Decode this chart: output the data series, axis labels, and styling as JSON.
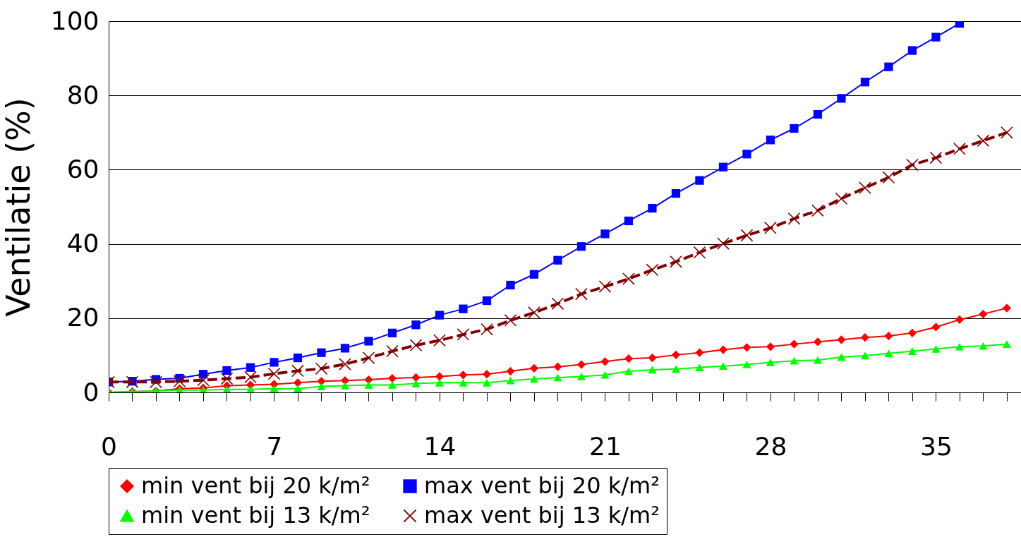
{
  "chart_data": {
    "type": "line",
    "ylabel": "Ventilatie (%)",
    "x": [
      0,
      1,
      2,
      3,
      4,
      5,
      6,
      7,
      8,
      9,
      10,
      11,
      12,
      13,
      14,
      15,
      16,
      17,
      18,
      19,
      20,
      21,
      22,
      23,
      24,
      25,
      26,
      27,
      28,
      29,
      30,
      31,
      32,
      33,
      34,
      35,
      36,
      37,
      38
    ],
    "xlim": [
      0,
      38.6
    ],
    "xticks": [
      0,
      {
        "value": 1,
        "label": null
      },
      {
        "value": 2,
        "label": null
      },
      {
        "value": 3,
        "label": null
      },
      {
        "value": 4,
        "label": null
      },
      {
        "value": 5,
        "label": null
      },
      {
        "value": 6,
        "label": null
      },
      7,
      {
        "value": 8,
        "label": null
      },
      {
        "value": 9,
        "label": null
      },
      {
        "value": 10,
        "label": null
      },
      {
        "value": 11,
        "label": null
      },
      {
        "value": 12,
        "label": null
      },
      {
        "value": 13,
        "label": null
      },
      14,
      {
        "value": 15,
        "label": null
      },
      {
        "value": 16,
        "label": null
      },
      {
        "value": 17,
        "label": null
      },
      {
        "value": 18,
        "label": null
      },
      {
        "value": 19,
        "label": null
      },
      {
        "value": 20,
        "label": null
      },
      21,
      {
        "value": 22,
        "label": null
      },
      {
        "value": 23,
        "label": null
      },
      {
        "value": 24,
        "label": null
      },
      {
        "value": 25,
        "label": null
      },
      {
        "value": 26,
        "label": null
      },
      {
        "value": 27,
        "label": null
      },
      28,
      {
        "value": 29,
        "label": null
      },
      {
        "value": 30,
        "label": null
      },
      {
        "value": 31,
        "label": null
      },
      {
        "value": 32,
        "label": null
      },
      {
        "value": 33,
        "label": null
      },
      {
        "value": 34,
        "label": null
      },
      35,
      {
        "value": 36,
        "label": null
      },
      {
        "value": 37,
        "label": null
      },
      {
        "value": 38,
        "label": null
      }
    ],
    "ylim": [
      0,
      100
    ],
    "yticks": [
      0,
      20,
      40,
      60,
      80,
      100
    ],
    "grid": "y",
    "legend": "bottom",
    "series": [
      {
        "name": "min vent bij 20 k/m²",
        "color": "#ff0000",
        "marker": "diamond",
        "line_style": "solid",
        "values": [
          0,
          0.2,
          0.4,
          1.0,
          1.2,
          1.8,
          2.0,
          2.2,
          2.6,
          3.0,
          3.2,
          3.4,
          3.8,
          4.0,
          4.3,
          4.7,
          4.9,
          5.7,
          6.5,
          6.9,
          7.5,
          8.3,
          9.1,
          9.3,
          10.1,
          10.7,
          11.5,
          12.1,
          12.3,
          13.0,
          13.6,
          14.2,
          14.8,
          15.2,
          16.0,
          17.6,
          19.6,
          21.1,
          22.7
        ]
      },
      {
        "name": "max vent bij 20 k/m²",
        "color": "#0000ff",
        "marker": "square",
        "line_style": "solid",
        "values": [
          2.8,
          3.0,
          3.5,
          3.8,
          4.9,
          5.9,
          6.7,
          8.1,
          9.3,
          10.7,
          11.9,
          13.8,
          16.0,
          18.2,
          20.8,
          22.5,
          24.7,
          28.9,
          31.8,
          35.6,
          39.3,
          42.7,
          46.2,
          49.6,
          53.6,
          57.1,
          60.7,
          64.2,
          68.0,
          71.1,
          74.9,
          79.2,
          83.6,
          87.7,
          92.1,
          95.7,
          99.4,
          null,
          null
        ]
      },
      {
        "name": "min vent bij 13 k/m²",
        "color": "#00ff00",
        "marker": "triangle",
        "line_style": "solid",
        "values": [
          0,
          0.2,
          0.4,
          0.6,
          0.6,
          0.8,
          0.8,
          1.0,
          1.0,
          1.6,
          1.8,
          2.0,
          2.0,
          2.4,
          2.6,
          2.6,
          2.6,
          3.2,
          3.6,
          4.0,
          4.3,
          4.7,
          5.7,
          6.1,
          6.3,
          6.7,
          7.1,
          7.5,
          8.1,
          8.5,
          8.7,
          9.5,
          9.9,
          10.5,
          11.1,
          11.7,
          12.3,
          12.5,
          13.0
        ]
      },
      {
        "name": "max vent bij 13 k/m²",
        "color": "#800000",
        "marker": "cross",
        "line_style": "dashed",
        "values": [
          2.8,
          2.8,
          2.8,
          3.0,
          3.3,
          3.7,
          4.1,
          5.0,
          5.8,
          6.4,
          7.6,
          9.3,
          11.1,
          12.7,
          14.0,
          15.6,
          17.0,
          19.4,
          21.5,
          23.9,
          26.5,
          28.5,
          30.6,
          33.0,
          35.2,
          37.7,
          40.1,
          42.3,
          44.3,
          46.8,
          49.0,
          52.2,
          55.1,
          57.9,
          61.3,
          63.2,
          65.6,
          67.8,
          70.0
        ]
      }
    ]
  }
}
